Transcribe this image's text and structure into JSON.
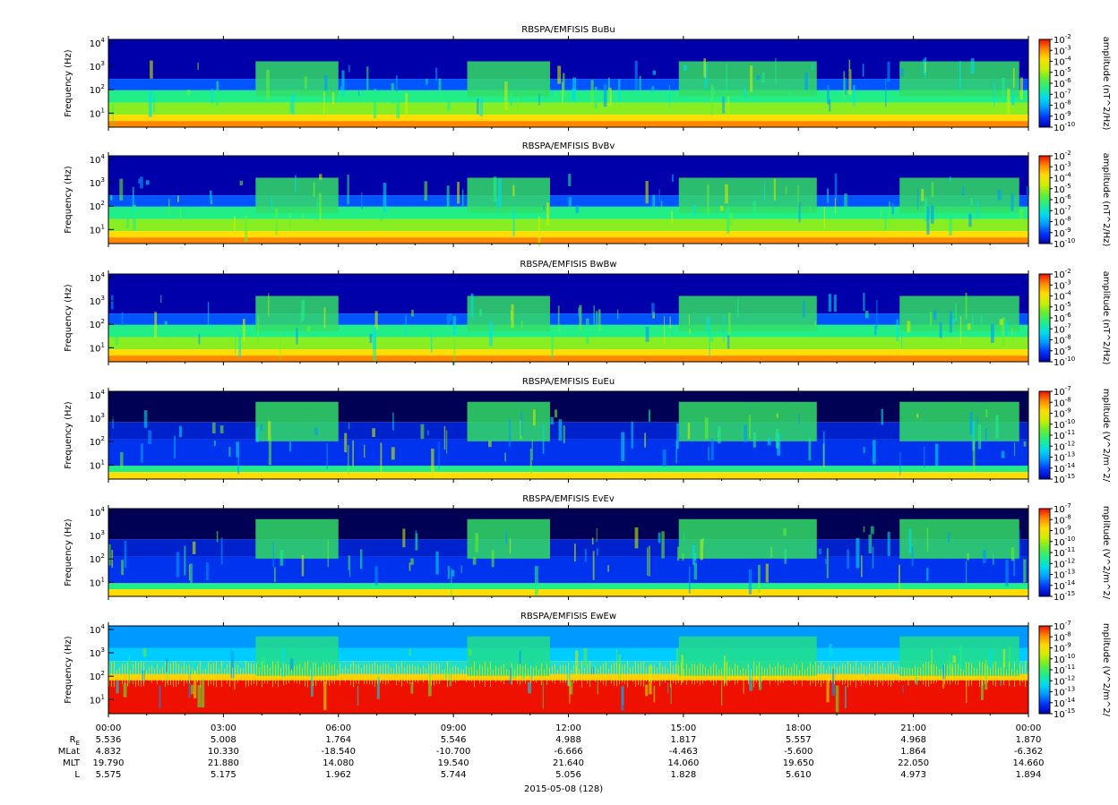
{
  "chart_data": [
    {
      "type": "heatmap",
      "title": "RBSPA/EMFISIS  BuBu",
      "ylabel": "Frequency (Hz)",
      "colorbar_label": "amplitude (nT^2/Hz)",
      "colorbar_ticks": [
        "-2",
        "-3",
        "-4",
        "-5",
        "-6",
        "-7",
        "-8",
        "-9",
        "-10"
      ],
      "colorbar_range_exp": [
        -10,
        -2
      ],
      "y_ticks_exp": [
        "1",
        "2",
        "3",
        "4"
      ],
      "y_scale": "log"
    },
    {
      "type": "heatmap",
      "title": "RBSPA/EMFISIS  BvBv",
      "ylabel": "Frequency (Hz)",
      "colorbar_label": "amplitude (nT^2/Hz)",
      "colorbar_ticks": [
        "-2",
        "-3",
        "-4",
        "-5",
        "-6",
        "-7",
        "-8",
        "-9",
        "-10"
      ],
      "colorbar_range_exp": [
        -10,
        -2
      ],
      "y_ticks_exp": [
        "1",
        "2",
        "3",
        "4"
      ],
      "y_scale": "log"
    },
    {
      "type": "heatmap",
      "title": "RBSPA/EMFISIS  BwBw",
      "ylabel": "Frequency (Hz)",
      "colorbar_label": "amplitude (nT^2/Hz)",
      "colorbar_ticks": [
        "-2",
        "-3",
        "-4",
        "-5",
        "-6",
        "-7",
        "-8",
        "-9",
        "-10"
      ],
      "colorbar_range_exp": [
        -10,
        -2
      ],
      "y_ticks_exp": [
        "1",
        "2",
        "3",
        "4"
      ],
      "y_scale": "log"
    },
    {
      "type": "heatmap",
      "title": "RBSPA/EMFISIS  EuEu",
      "ylabel": "Frequency (Hz)",
      "colorbar_label": "mplitude (V^2/m^2/",
      "colorbar_ticks": [
        "-7",
        "-8",
        "-9",
        "-10",
        "-11",
        "-12",
        "-13",
        "-14",
        "-15"
      ],
      "colorbar_range_exp": [
        -15,
        -7
      ],
      "y_ticks_exp": [
        "1",
        "2",
        "3",
        "4"
      ],
      "y_scale": "log"
    },
    {
      "type": "heatmap",
      "title": "RBSPA/EMFISIS  EvEv",
      "ylabel": "Frequency (Hz)",
      "colorbar_label": "mplitude (V^2/m^2/",
      "colorbar_ticks": [
        "-7",
        "-8",
        "-9",
        "-10",
        "-11",
        "-12",
        "-13",
        "-14",
        "-15"
      ],
      "colorbar_range_exp": [
        -15,
        -7
      ],
      "y_ticks_exp": [
        "1",
        "2",
        "3",
        "4"
      ],
      "y_scale": "log"
    },
    {
      "type": "heatmap",
      "title": "RBSPA/EMFISIS  EwEw",
      "ylabel": "Frequency (Hz)",
      "colorbar_label": "mplitude (V^2/m^2/",
      "colorbar_ticks": [
        "-7",
        "-8",
        "-9",
        "-10",
        "-11",
        "-12",
        "-13",
        "-14",
        "-15"
      ],
      "colorbar_range_exp": [
        -15,
        -7
      ],
      "y_ticks_exp": [
        "1",
        "2",
        "3",
        "4"
      ],
      "y_scale": "log"
    }
  ],
  "x_axis": {
    "time_labels": [
      "00:00",
      "03:00",
      "06:00",
      "09:00",
      "12:00",
      "15:00",
      "18:00",
      "21:00",
      "00:00"
    ],
    "rows": [
      {
        "label": "R",
        "sub": "E",
        "values": [
          "5.536",
          "5.008",
          "1.764",
          "5.546",
          "4.988",
          "1.817",
          "5.557",
          "4.968",
          "1.870"
        ]
      },
      {
        "label": "MLat",
        "values": [
          "4.832",
          "10.330",
          "-18.540",
          "-10.700",
          "-6.666",
          "-4.463",
          "-5.600",
          "1.864",
          "-6.362"
        ]
      },
      {
        "label": "MLT",
        "values": [
          "19.790",
          "21.880",
          "14.080",
          "19.540",
          "21.640",
          "14.060",
          "19.650",
          "22.050",
          "14.660"
        ]
      },
      {
        "label": "L",
        "values": [
          "5.575",
          "5.175",
          "1.962",
          "5.744",
          "5.056",
          "1.828",
          "5.610",
          "4.973",
          "1.894"
        ]
      }
    ],
    "date_label": "2015-05-08 (128)"
  },
  "colors": {
    "background": "#ffffff",
    "colormap": [
      "#0000aa",
      "#0033ff",
      "#0099ff",
      "#00ddee",
      "#22ee88",
      "#66ee33",
      "#ccee00",
      "#ffdd00",
      "#ff8800",
      "#ee1100"
    ]
  }
}
